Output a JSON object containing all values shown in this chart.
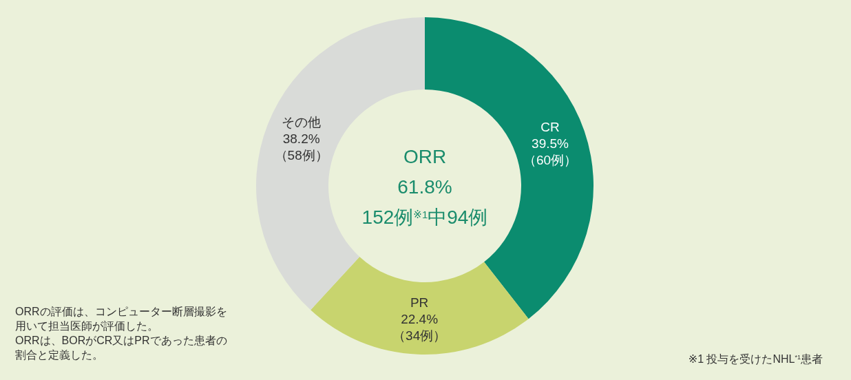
{
  "chart_data": {
    "type": "donut",
    "categories": [
      "CR",
      "PR",
      "その他"
    ],
    "values": [
      39.5,
      22.4,
      38.2
    ],
    "colors": [
      "#0b8c6f",
      "#c8d46e",
      "#d9dbd8"
    ],
    "value_labels": [
      "39.5%\n（60例）",
      "22.4%\n（34例）",
      "38.2%\n（58例）"
    ],
    "annotations": [
      "ORR\n61.8%\n152例$^{※1}$中94例",
      "ORRの評価は、コンピューター断層撮影を用いて担当医師が評価した。",
      "ORRは、BORがCR又はPRであった患者の割合と定義した。",
      "※1 投与を受けたNHL$^{*1}$患者"
    ]
  }
}
